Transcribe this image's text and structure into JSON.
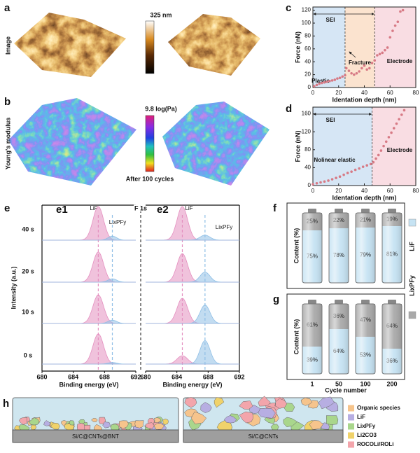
{
  "panel_labels": [
    "a",
    "b",
    "c",
    "d",
    "e",
    "f",
    "g",
    "h"
  ],
  "afm": {
    "row_labels": [
      "Image",
      "Young's modulus"
    ],
    "height_scale": "325 nm",
    "modulus_scale": "9.8 log(Pa)",
    "caption": "After 100 cycles"
  },
  "chart_data": [
    {
      "type": "scatter",
      "xlabel": "Identation depth (nm)",
      "ylabel": "Force (nN)",
      "x": [
        1,
        3,
        5,
        7,
        9,
        11,
        13,
        15,
        17,
        19,
        21,
        23,
        25,
        26,
        28,
        30,
        32,
        34,
        36,
        38,
        40,
        42,
        44,
        46,
        48,
        50,
        52,
        54,
        56,
        58,
        60,
        62,
        64,
        66,
        68,
        70
      ],
      "series": [
        {
          "color": "#d77a85",
          "values": [
            2,
            4,
            6,
            7,
            8,
            9,
            10,
            11,
            12,
            14,
            15,
            17,
            19,
            30,
            26,
            22,
            20,
            22,
            25,
            30,
            34,
            28,
            30,
            38,
            42,
            50,
            52,
            54,
            58,
            62,
            78,
            88,
            96,
            102,
            118,
            120
          ]
        }
      ],
      "xlim": [
        0,
        80
      ],
      "ylim": [
        0,
        125
      ],
      "xticks": [
        0,
        20,
        40,
        60,
        80
      ],
      "yticks": [
        0,
        20,
        40,
        60,
        80,
        100,
        120
      ],
      "boundaries": [
        25,
        48
      ],
      "region_colors": [
        "#d6e6f5",
        "#fbe3cf",
        "#f9dde3"
      ],
      "annotations": [
        "SEI",
        "Plastic",
        "Fracture",
        "Electrode"
      ]
    },
    {
      "type": "scatter",
      "xlabel": "Identation depth (nm)",
      "ylabel": "Force (nN)",
      "x": [
        0,
        3,
        6,
        9,
        12,
        15,
        18,
        21,
        24,
        27,
        30,
        33,
        36,
        39,
        42,
        45,
        47,
        49,
        51,
        53,
        55,
        57,
        59,
        61,
        63,
        65,
        67,
        69,
        71
      ],
      "series": [
        {
          "color": "#d77a85",
          "values": [
            3,
            5,
            7,
            9,
            11,
            14,
            17,
            20,
            24,
            28,
            31,
            35,
            38,
            42,
            45,
            48,
            52,
            60,
            68,
            78,
            88,
            98,
            108,
            118,
            128,
            138,
            148,
            158,
            168
          ]
        }
      ],
      "xlim": [
        0,
        80
      ],
      "ylim": [
        0,
        175
      ],
      "xticks": [
        0,
        20,
        40,
        60,
        80
      ],
      "yticks": [
        0,
        40,
        80,
        120,
        160
      ],
      "boundaries": [
        46
      ],
      "region_colors": [
        "#d6e6f5",
        "#f9dde3"
      ],
      "annotations": [
        "SEI",
        "Nolinear elastic",
        "Electrode"
      ]
    },
    {
      "type": "spectra",
      "xlabel": "Binding energy (eV)",
      "ylabel": "Intensity (a.u.)",
      "core_level": "F 1s",
      "xlim": [
        680,
        692
      ],
      "xticks": [
        680,
        684,
        688,
        692
      ],
      "times": [
        "40 s",
        "20 s",
        "10 s",
        "0 s"
      ],
      "component_names": [
        "LiF",
        "LixPFy"
      ],
      "component_colors": [
        "#e48fbf",
        "#8fbfe6"
      ],
      "panels": [
        {
          "label": "e1",
          "centers": [
            687.2,
            689.0
          ],
          "widths": [
            1.6,
            1.3
          ],
          "heights": [
            [
              1.0,
              0.12
            ],
            [
              0.9,
              0.1
            ],
            [
              0.85,
              0.1
            ],
            [
              0.9,
              0.05
            ]
          ]
        },
        {
          "label": "e2",
          "centers": [
            684.7,
            687.6
          ],
          "widths": [
            1.6,
            1.5
          ],
          "heights": [
            [
              1.0,
              0.15
            ],
            [
              0.85,
              0.3
            ],
            [
              0.75,
              0.55
            ],
            [
              0.25,
              0.7
            ]
          ]
        }
      ]
    },
    {
      "type": "battery",
      "ylabel": "Content (%)",
      "ylim": [
        0,
        100
      ],
      "series": [
        {
          "name": "LiF",
          "color": "#c6e3f3",
          "values": [
            75,
            78,
            79,
            81
          ],
          "value_labels": [
            "75%",
            "78%",
            "79%",
            "81%"
          ]
        },
        {
          "name": "LixPFy",
          "color": "#a9a9a9",
          "values": [
            25,
            22,
            21,
            19
          ],
          "value_labels": [
            "25%",
            "22%",
            "21%",
            "19%"
          ]
        }
      ]
    },
    {
      "type": "battery",
      "ylabel": "Content (%)",
      "xlabel": "Cycle number",
      "ylim": [
        0,
        100
      ],
      "categories": [
        "1",
        "50",
        "100",
        "200"
      ],
      "series": [
        {
          "color": "#c6e3f3",
          "values": [
            39,
            64,
            53,
            36
          ],
          "value_labels": [
            "39%",
            "64%",
            "53%",
            "36%"
          ]
        },
        {
          "color": "#a9a9a9",
          "values": [
            61,
            36,
            47,
            64
          ],
          "value_labels": [
            "61%",
            "36%",
            "47%",
            "64%"
          ]
        }
      ]
    }
  ],
  "schematic": {
    "labels": [
      "Si/C@CNTs@BNT",
      "Si/C@CNTs"
    ],
    "legend": [
      {
        "label": "Organic species",
        "color": "#f6c48c"
      },
      {
        "label": "LiF",
        "color": "#b7aee2"
      },
      {
        "label": "LixPFy",
        "color": "#a9d68c"
      },
      {
        "label": "Li2CO3",
        "color": "#f0d26a"
      },
      {
        "label": "ROCOLi/ROLi",
        "color": "#f3a5ab"
      }
    ]
  }
}
